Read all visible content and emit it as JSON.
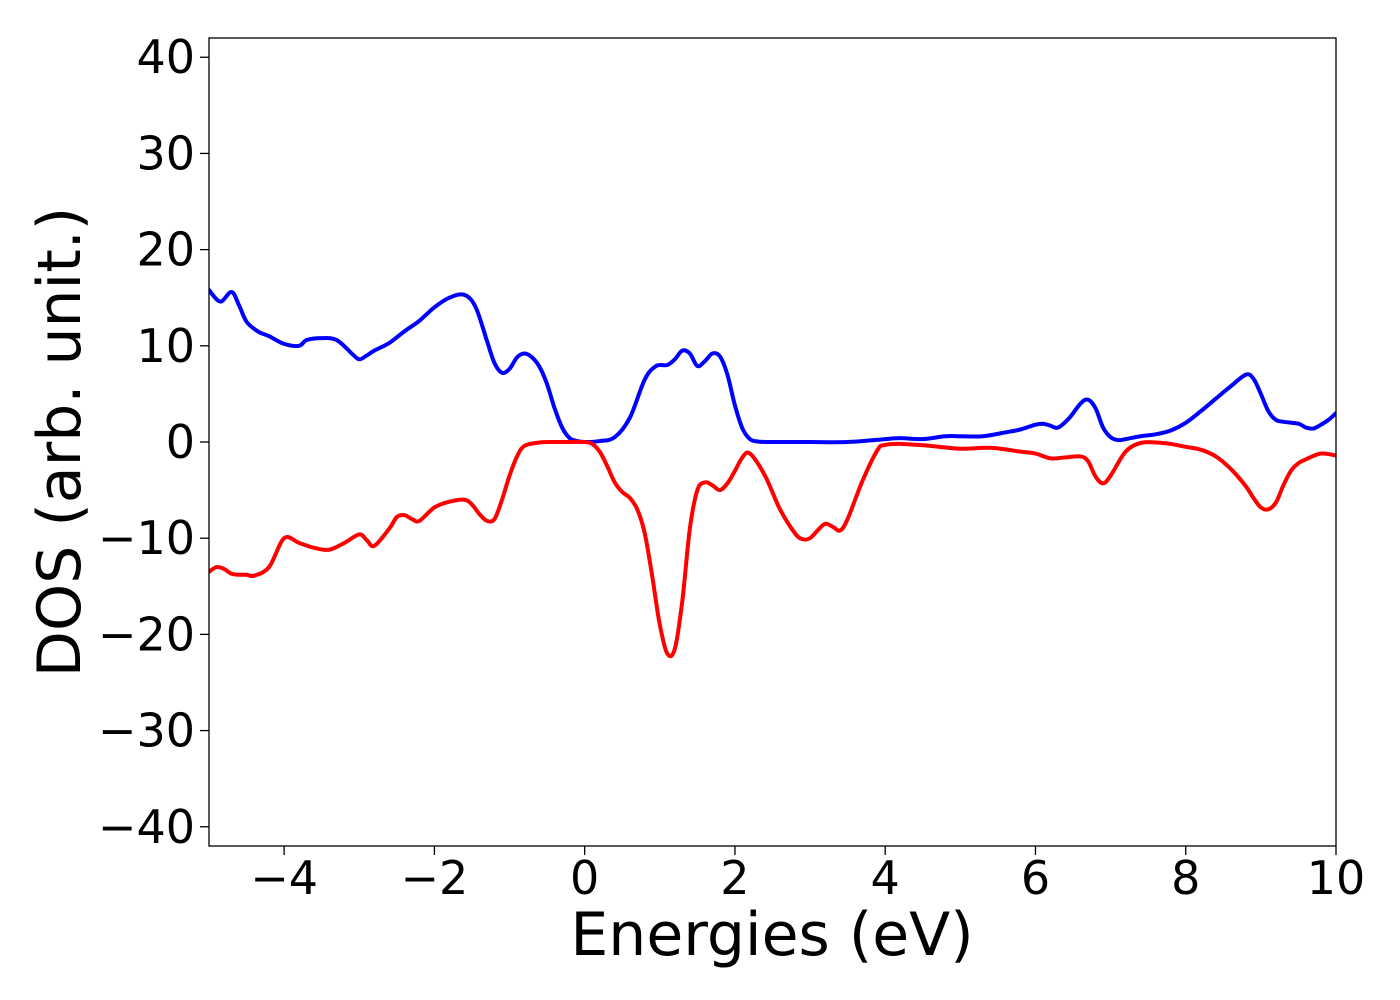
{
  "chart_data": {
    "type": "line",
    "title": "",
    "xlabel": "Energies (eV)",
    "ylabel": "DOS (arb. unit.)",
    "xlim": [
      -5,
      10
    ],
    "ylim": [
      -42,
      42
    ],
    "xticks": [
      -4,
      -2,
      0,
      2,
      4,
      6,
      8,
      10
    ],
    "yticks": [
      -40,
      -30,
      -20,
      -10,
      0,
      10,
      20,
      30,
      40
    ],
    "xtick_labels": [
      "−4",
      "−2",
      "0",
      "2",
      "4",
      "6",
      "8",
      "10"
    ],
    "ytick_labels": [
      "−40",
      "−30",
      "−20",
      "−10",
      "0",
      "10",
      "20",
      "30",
      "40"
    ],
    "grid": false,
    "legend": false,
    "series": [
      {
        "color": "#0000ff",
        "x": [
          -5.0,
          -4.85,
          -4.7,
          -4.6,
          -4.5,
          -4.35,
          -4.2,
          -4.0,
          -3.8,
          -3.7,
          -3.5,
          -3.3,
          -3.1,
          -3.0,
          -2.9,
          -2.8,
          -2.6,
          -2.4,
          -2.2,
          -2.0,
          -1.8,
          -1.6,
          -1.45,
          -1.3,
          -1.2,
          -1.1,
          -1.0,
          -0.9,
          -0.8,
          -0.7,
          -0.6,
          -0.5,
          -0.4,
          -0.3,
          -0.2,
          -0.1,
          0.0,
          0.2,
          0.4,
          0.6,
          0.8,
          0.95,
          1.1,
          1.2,
          1.3,
          1.4,
          1.5,
          1.6,
          1.7,
          1.8,
          1.9,
          2.0,
          2.1,
          2.2,
          2.3,
          2.45,
          2.6,
          2.8,
          3.0,
          3.5,
          4.0,
          4.2,
          4.5,
          4.8,
          5.0,
          5.3,
          5.6,
          5.8,
          6.0,
          6.1,
          6.2,
          6.3,
          6.45,
          6.6,
          6.7,
          6.8,
          6.9,
          7.0,
          7.1,
          7.2,
          7.4,
          7.6,
          7.8,
          8.0,
          8.2,
          8.4,
          8.6,
          8.8,
          8.9,
          9.0,
          9.1,
          9.2,
          9.3,
          9.5,
          9.6,
          9.7,
          9.8,
          9.9,
          10.0
        ],
        "y": [
          15.8,
          14.6,
          15.6,
          14.2,
          12.5,
          11.5,
          11.0,
          10.2,
          10.0,
          10.6,
          10.8,
          10.6,
          9.2,
          8.6,
          9.0,
          9.5,
          10.3,
          11.5,
          12.6,
          14.0,
          15.0,
          15.3,
          14.0,
          10.5,
          8.2,
          7.2,
          7.6,
          8.8,
          9.2,
          8.8,
          7.8,
          6.0,
          3.5,
          1.5,
          0.4,
          0.1,
          0.0,
          0.1,
          0.5,
          2.5,
          6.5,
          7.9,
          8.0,
          8.6,
          9.5,
          9.2,
          7.9,
          8.4,
          9.2,
          8.9,
          7.0,
          3.8,
          1.4,
          0.3,
          0.05,
          0.0,
          0.0,
          0.0,
          0.0,
          0.0,
          0.3,
          0.4,
          0.3,
          0.6,
          0.6,
          0.6,
          1.0,
          1.3,
          1.8,
          1.9,
          1.7,
          1.5,
          2.5,
          4.0,
          4.4,
          3.5,
          1.5,
          0.5,
          0.2,
          0.3,
          0.6,
          0.8,
          1.2,
          2.0,
          3.2,
          4.5,
          5.8,
          7.0,
          6.6,
          5.0,
          3.2,
          2.3,
          2.1,
          1.9,
          1.5,
          1.4,
          1.8,
          2.3,
          3.0
        ]
      },
      {
        "color": "#ff0000",
        "x": [
          -5.0,
          -4.9,
          -4.8,
          -4.7,
          -4.6,
          -4.5,
          -4.4,
          -4.2,
          -4.0,
          -3.8,
          -3.6,
          -3.4,
          -3.2,
          -3.0,
          -2.9,
          -2.8,
          -2.6,
          -2.5,
          -2.4,
          -2.3,
          -2.2,
          -2.0,
          -1.8,
          -1.6,
          -1.5,
          -1.4,
          -1.3,
          -1.2,
          -1.1,
          -1.0,
          -0.9,
          -0.8,
          -0.6,
          -0.4,
          -0.2,
          0.0,
          0.1,
          0.2,
          0.3,
          0.4,
          0.5,
          0.6,
          0.7,
          0.8,
          0.9,
          1.0,
          1.1,
          1.2,
          1.3,
          1.4,
          1.5,
          1.6,
          1.7,
          1.8,
          1.9,
          2.0,
          2.1,
          2.2,
          2.4,
          2.6,
          2.8,
          2.9,
          3.0,
          3.1,
          3.2,
          3.3,
          3.4,
          3.5,
          3.7,
          3.9,
          4.0,
          4.2,
          4.6,
          5.0,
          5.4,
          5.8,
          6.0,
          6.2,
          6.4,
          6.6,
          6.7,
          6.8,
          6.9,
          7.0,
          7.2,
          7.4,
          7.6,
          7.8,
          8.0,
          8.2,
          8.4,
          8.6,
          8.8,
          8.9,
          9.0,
          9.1,
          9.2,
          9.3,
          9.4,
          9.5,
          9.6,
          9.8,
          10.0
        ],
        "y": [
          -13.5,
          -13.0,
          -13.2,
          -13.7,
          -13.8,
          -13.8,
          -13.9,
          -13.0,
          -10.0,
          -10.5,
          -11.0,
          -11.2,
          -10.5,
          -9.6,
          -10.2,
          -10.8,
          -9.0,
          -7.8,
          -7.6,
          -8.0,
          -8.2,
          -6.8,
          -6.2,
          -6.0,
          -6.5,
          -7.5,
          -8.2,
          -8.0,
          -6.0,
          -3.5,
          -1.5,
          -0.4,
          -0.05,
          0.0,
          0.0,
          0.0,
          -0.2,
          -1.0,
          -2.5,
          -4.2,
          -5.2,
          -5.8,
          -7.0,
          -9.5,
          -14.0,
          -19.0,
          -22.0,
          -21.5,
          -16.5,
          -9.0,
          -5.0,
          -4.2,
          -4.5,
          -5.0,
          -4.3,
          -3.0,
          -1.6,
          -1.2,
          -3.5,
          -7.0,
          -9.5,
          -10.1,
          -10.0,
          -9.2,
          -8.5,
          -8.8,
          -9.2,
          -8.0,
          -4.0,
          -0.8,
          -0.3,
          -0.2,
          -0.4,
          -0.7,
          -0.6,
          -1.0,
          -1.2,
          -1.7,
          -1.6,
          -1.5,
          -2.0,
          -3.6,
          -4.3,
          -3.5,
          -1.0,
          -0.1,
          -0.05,
          -0.2,
          -0.5,
          -0.8,
          -1.5,
          -2.8,
          -4.6,
          -5.8,
          -6.8,
          -7.0,
          -6.3,
          -4.5,
          -3.0,
          -2.2,
          -1.8,
          -1.2,
          -1.4
        ]
      }
    ]
  }
}
